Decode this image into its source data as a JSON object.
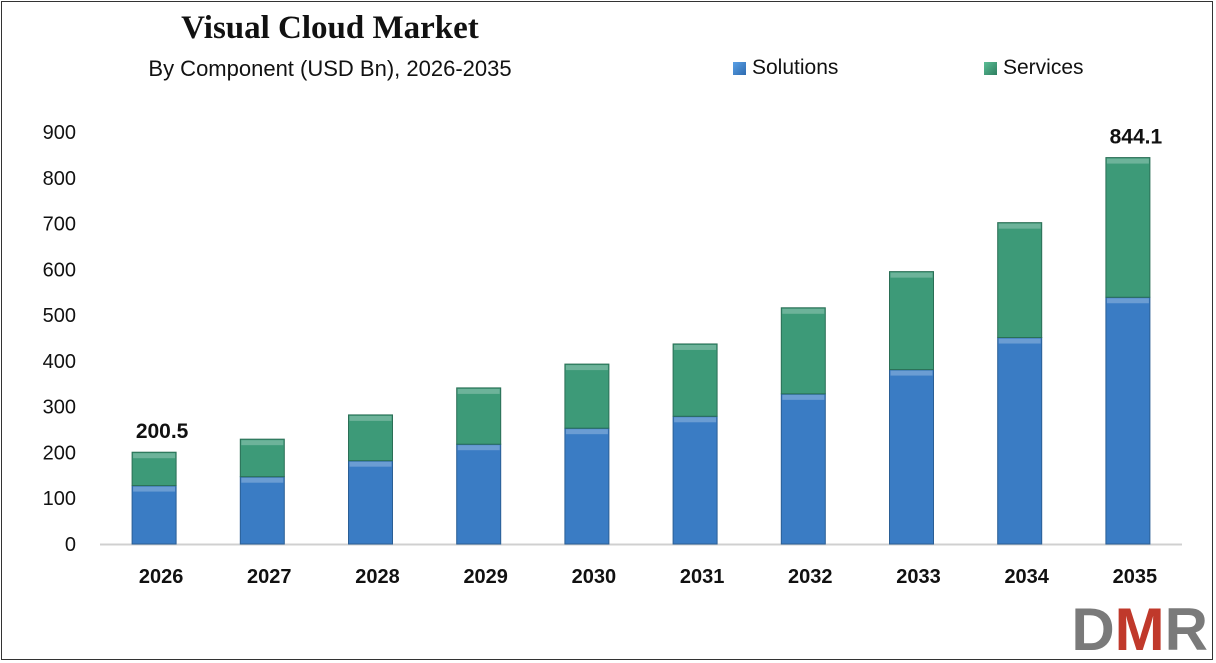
{
  "chart_data": {
    "type": "bar",
    "stacked": true,
    "title": "Visual Cloud Market",
    "subtitle": "By Component (USD Bn), 2026-2035",
    "categories": [
      "2026",
      "2027",
      "2028",
      "2029",
      "2030",
      "2031",
      "2032",
      "2033",
      "2034",
      "2035"
    ],
    "series": [
      {
        "name": "Solutions",
        "color": "#3a7cc4",
        "values": [
          127.6,
          147,
          182,
          218,
          253,
          279,
          328,
          381,
          451,
          539
        ]
      },
      {
        "name": "Services",
        "color": "#3d9a78",
        "values": [
          72.9,
          82,
          100,
          123,
          140,
          158,
          188,
          214,
          251,
          305.1
        ]
      }
    ],
    "data_labels": [
      {
        "category": "2026",
        "text": "200.5"
      },
      {
        "category": "2035",
        "text": "844.1"
      }
    ],
    "ylim": [
      0,
      900
    ],
    "yticks": [
      0,
      100,
      200,
      300,
      400,
      500,
      600,
      700,
      800,
      900
    ],
    "grid": false,
    "legend_position": "top-right",
    "xlabel": "",
    "ylabel": ""
  },
  "logo": {
    "text": "DMR",
    "colors": [
      "#7a7a7a",
      "#c0392b",
      "#7a7a7a"
    ]
  }
}
